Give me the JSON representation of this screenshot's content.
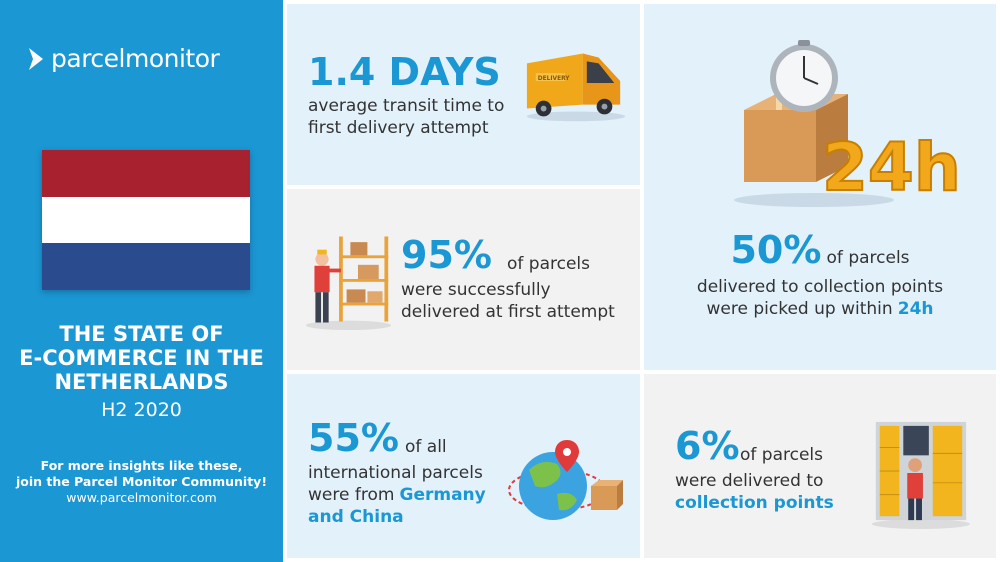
{
  "sidebar": {
    "logo_text": "parcelmonitor",
    "title_lines": [
      "THE STATE OF",
      "E-COMMERCE IN THE",
      "NETHERLANDS"
    ],
    "period": "H2 2020",
    "cta_lines": [
      "For more insights like these,",
      "join the Parcel Monitor Community!"
    ],
    "url": "www.parcelmonitor.com",
    "flag_colors": [
      "#a8212e",
      "#ffffff",
      "#2b4b8f"
    ]
  },
  "stats": {
    "transit": {
      "value": "1.4 DAYS",
      "line1": "average transit time to",
      "line2": "first delivery attempt",
      "van_text": "DELIVERY"
    },
    "first_attempt": {
      "value": "95%",
      "suffix": "of parcels",
      "line1": "were successfully",
      "line2": "delivered at first attempt"
    },
    "pickup": {
      "value": "50%",
      "suffix": "of parcels",
      "line1": "delivered to collection points",
      "line2_prefix": "were picked up within",
      "line2_highlight": "24h",
      "badge": "24h"
    },
    "international": {
      "value": "55%",
      "suffix": "of all",
      "line1": "international parcels",
      "line2_prefix": "were from",
      "line2_highlight": "Germany",
      "line3_highlight": "and China"
    },
    "collection": {
      "value": "6%",
      "suffix": "of parcels",
      "line1": "were delivered to",
      "line2_highlight": "collection points"
    }
  },
  "colors": {
    "brand_blue": "#1b97d4",
    "panel_blue": "#e3f1fb",
    "panel_grey": "#f2f2f2",
    "text": "#333333"
  }
}
